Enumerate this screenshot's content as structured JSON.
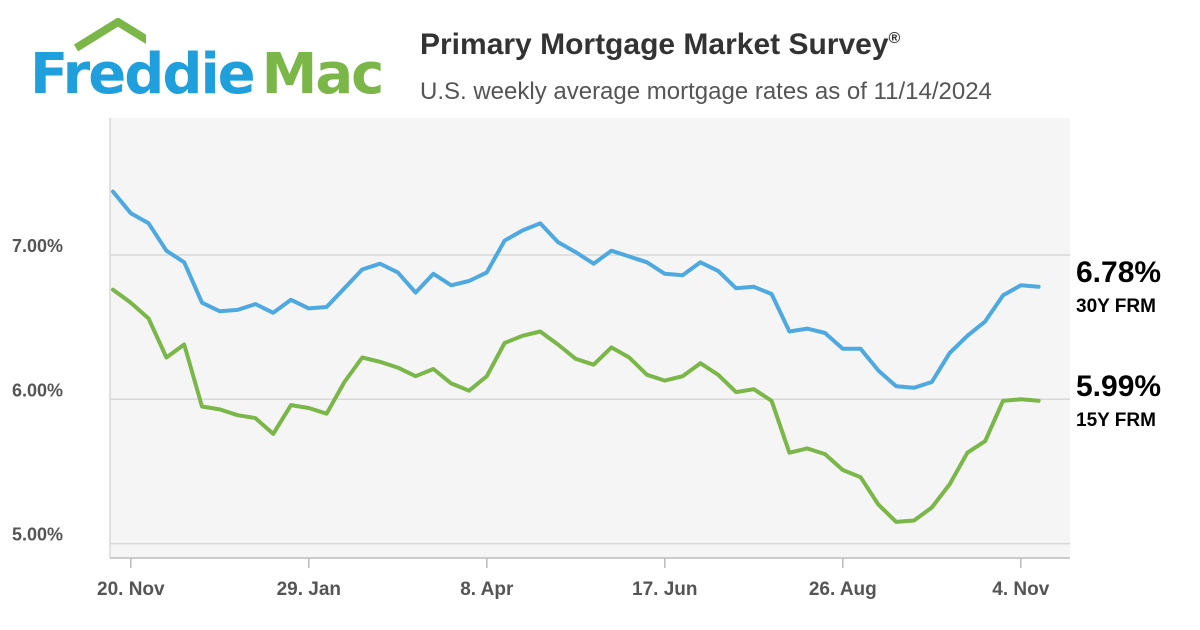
{
  "header": {
    "logo_freddie": "Freddie",
    "logo_mac": "Mac",
    "title": "Primary Mortgage Market Survey",
    "title_mark": "®",
    "subtitle": "U.S. weekly average mortgage rates as of 11/14/2024"
  },
  "legend": {
    "frm30_value": "6.78%",
    "frm30_label": "30Y FRM",
    "frm15_value": "5.99%",
    "frm15_label": "15Y FRM"
  },
  "colors": {
    "frm30": "#4ea9e0",
    "frm15": "#7ab648",
    "grid": "#d8d8d8",
    "plot_bg": "#f5f5f5",
    "axis_text": "#555555"
  },
  "chart_data": {
    "type": "line",
    "title": "Primary Mortgage Market Survey",
    "subtitle": "U.S. weekly average mortgage rates as of 11/14/2024",
    "ylim": [
      4.9,
      7.95
    ],
    "y_ticks": [
      "5.00%",
      "6.00%",
      "7.00%"
    ],
    "y_tick_values": [
      5.0,
      6.0,
      7.0
    ],
    "x_ticks": [
      "20. Nov",
      "29. Jan",
      "8. Apr",
      "17. Jun",
      "26. Aug",
      "4. Nov"
    ],
    "x_tick_week_index": [
      1,
      11,
      21,
      31,
      41,
      51
    ],
    "grid": true,
    "series": [
      {
        "name": "30Y FRM",
        "values": [
          7.44,
          7.29,
          7.22,
          7.03,
          6.95,
          6.67,
          6.61,
          6.62,
          6.66,
          6.6,
          6.69,
          6.63,
          6.64,
          6.77,
          6.9,
          6.94,
          6.88,
          6.74,
          6.87,
          6.79,
          6.82,
          6.88,
          7.1,
          7.17,
          7.22,
          7.09,
          7.02,
          6.94,
          7.03,
          6.99,
          6.95,
          6.87,
          6.86,
          6.95,
          6.89,
          6.77,
          6.78,
          6.73,
          6.47,
          6.49,
          6.46,
          6.35,
          6.35,
          6.2,
          6.09,
          6.08,
          6.12,
          6.32,
          6.44,
          6.54,
          6.72,
          6.79,
          6.78
        ]
      },
      {
        "name": "15Y FRM",
        "values": [
          6.76,
          6.67,
          6.56,
          6.29,
          6.38,
          5.95,
          5.93,
          5.89,
          5.87,
          5.76,
          5.96,
          5.94,
          5.9,
          6.12,
          6.29,
          6.26,
          6.22,
          6.16,
          6.21,
          6.11,
          6.06,
          6.16,
          6.39,
          6.44,
          6.47,
          6.38,
          6.28,
          6.24,
          6.36,
          6.29,
          6.17,
          6.13,
          6.16,
          6.25,
          6.17,
          6.05,
          6.07,
          5.99,
          5.63,
          5.66,
          5.62,
          5.51,
          5.46,
          5.27,
          5.15,
          5.16,
          5.25,
          5.41,
          5.63,
          5.71,
          5.99,
          6.0,
          5.99
        ]
      }
    ]
  }
}
